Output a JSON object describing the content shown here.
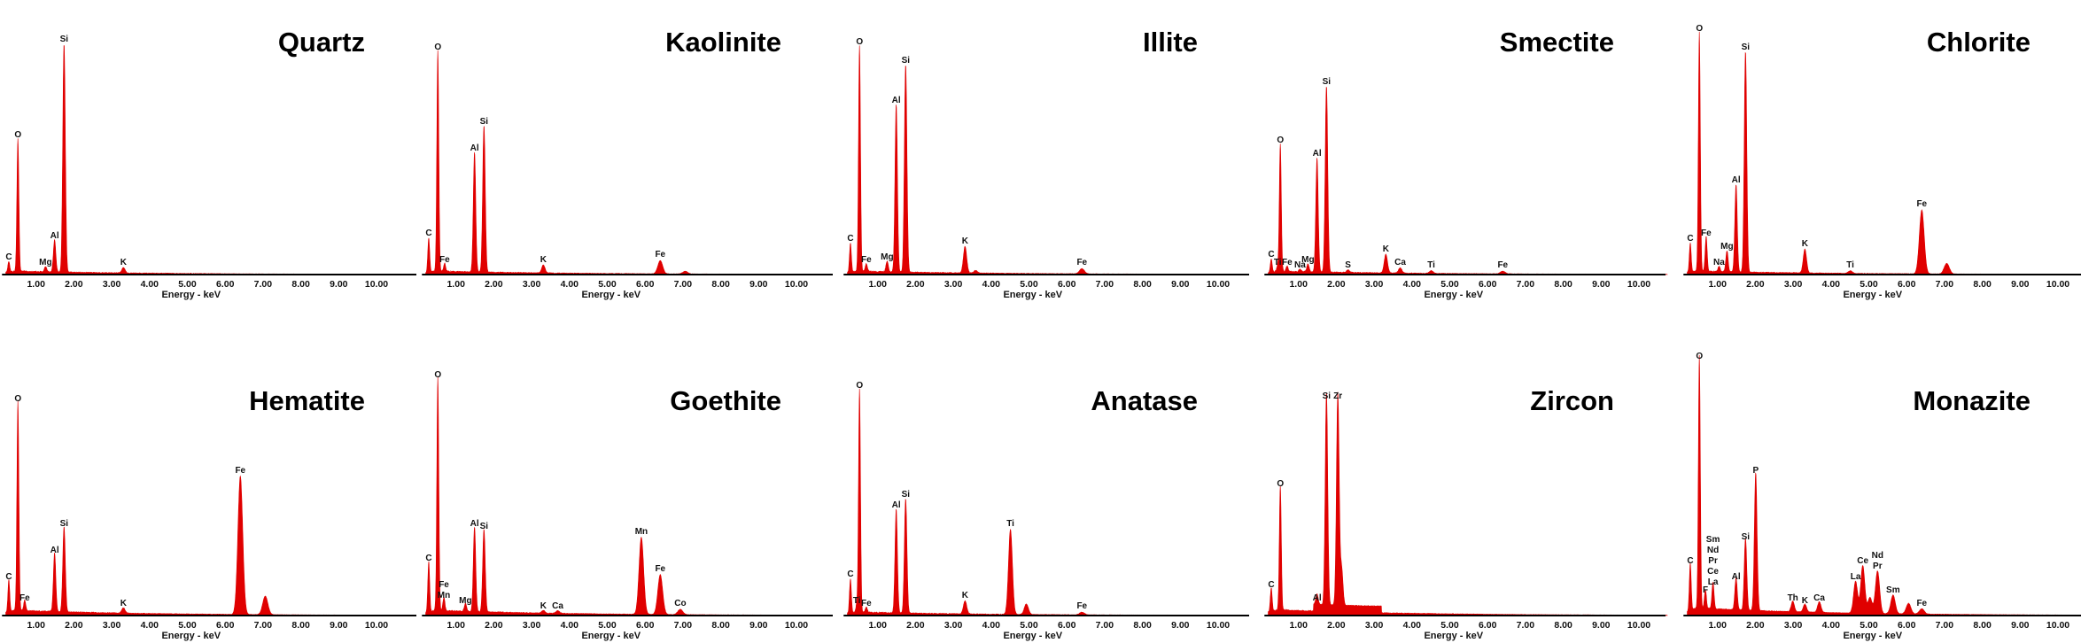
{
  "axis": {
    "xlabel": "Energy - keV",
    "ticks": [
      "1.00",
      "2.00",
      "3.00",
      "4.00",
      "5.00",
      "6.00",
      "7.00",
      "8.00",
      "9.00",
      "10.00"
    ],
    "tick_values": [
      1,
      2,
      3,
      4,
      5,
      6,
      7,
      8,
      9,
      10
    ],
    "xlim": [
      0,
      10.7
    ],
    "intensity_unit": "relative counts (% of full scale)"
  },
  "colors": {
    "spectrum": "#e00000",
    "axis": "#000000"
  },
  "chart_data": [
    {
      "type": "area",
      "title": "Quartz",
      "xlabel": "Energy - keV",
      "peaks": [
        {
          "energy": 0.28,
          "intensity": 4,
          "labels": [
            "C"
          ]
        },
        {
          "energy": 0.52,
          "intensity": 50,
          "labels": [
            "O"
          ]
        },
        {
          "energy": 1.25,
          "intensity": 2,
          "labels": [
            "Mg"
          ]
        },
        {
          "energy": 1.49,
          "intensity": 12,
          "labels": [
            "Al"
          ]
        },
        {
          "energy": 1.74,
          "intensity": 86,
          "labels": [
            "Si"
          ]
        },
        {
          "energy": 3.31,
          "intensity": 2,
          "labels": [
            "K"
          ]
        }
      ]
    },
    {
      "type": "area",
      "title": "Kaolinite",
      "xlabel": "Energy - keV",
      "peaks": [
        {
          "energy": 0.28,
          "intensity": 13,
          "labels": [
            "C"
          ]
        },
        {
          "energy": 0.52,
          "intensity": 83,
          "labels": [
            "O"
          ]
        },
        {
          "energy": 0.7,
          "intensity": 3,
          "labels": [
            "Fe"
          ]
        },
        {
          "energy": 1.49,
          "intensity": 45,
          "labels": [
            "Al"
          ]
        },
        {
          "energy": 1.74,
          "intensity": 55,
          "labels": [
            "Si"
          ]
        },
        {
          "energy": 3.31,
          "intensity": 3,
          "labels": [
            "K"
          ]
        },
        {
          "energy": 6.4,
          "intensity": 5,
          "labels": [
            "Fe"
          ]
        },
        {
          "energy": 7.06,
          "intensity": 1,
          "labels": []
        }
      ]
    },
    {
      "type": "area",
      "title": "Illite",
      "xlabel": "Energy - keV",
      "peaks": [
        {
          "energy": 0.28,
          "intensity": 11,
          "labels": [
            "C"
          ]
        },
        {
          "energy": 0.52,
          "intensity": 85,
          "labels": [
            "O"
          ]
        },
        {
          "energy": 0.7,
          "intensity": 3,
          "labels": [
            "Fe"
          ]
        },
        {
          "energy": 1.25,
          "intensity": 4,
          "labels": [
            "Mg"
          ]
        },
        {
          "energy": 1.49,
          "intensity": 63,
          "labels": [
            "Al"
          ]
        },
        {
          "energy": 1.74,
          "intensity": 78,
          "labels": [
            "Si"
          ]
        },
        {
          "energy": 3.31,
          "intensity": 10,
          "labels": [
            "K"
          ]
        },
        {
          "energy": 3.59,
          "intensity": 1,
          "labels": []
        },
        {
          "energy": 6.4,
          "intensity": 2,
          "labels": [
            "Fe"
          ]
        }
      ]
    },
    {
      "type": "area",
      "title": "Smectite",
      "xlabel": "Energy - keV",
      "peaks": [
        {
          "energy": 0.28,
          "intensity": 5,
          "labels": [
            "C"
          ]
        },
        {
          "energy": 0.45,
          "intensity": 2,
          "labels": [
            "Ti"
          ]
        },
        {
          "energy": 0.52,
          "intensity": 48,
          "labels": [
            "O"
          ]
        },
        {
          "energy": 0.7,
          "intensity": 2,
          "labels": [
            "Fe"
          ]
        },
        {
          "energy": 1.04,
          "intensity": 1,
          "labels": [
            "Na"
          ]
        },
        {
          "energy": 1.25,
          "intensity": 3,
          "labels": [
            "Mg"
          ]
        },
        {
          "energy": 1.49,
          "intensity": 43,
          "labels": [
            "Al"
          ]
        },
        {
          "energy": 1.74,
          "intensity": 70,
          "labels": [
            "Si"
          ]
        },
        {
          "energy": 2.31,
          "intensity": 1,
          "labels": [
            "S"
          ]
        },
        {
          "energy": 3.31,
          "intensity": 7,
          "labels": [
            "K"
          ]
        },
        {
          "energy": 3.69,
          "intensity": 2,
          "labels": [
            "Ca"
          ]
        },
        {
          "energy": 4.51,
          "intensity": 1,
          "labels": [
            "Ti"
          ]
        },
        {
          "energy": 6.4,
          "intensity": 1,
          "labels": [
            "Fe"
          ]
        }
      ]
    },
    {
      "type": "area",
      "title": "Chlorite",
      "xlabel": "Energy - keV",
      "peaks": [
        {
          "energy": 0.28,
          "intensity": 11,
          "labels": [
            "C"
          ]
        },
        {
          "energy": 0.52,
          "intensity": 90,
          "labels": [
            "O"
          ]
        },
        {
          "energy": 0.7,
          "intensity": 13,
          "labels": [
            "Fe"
          ]
        },
        {
          "energy": 1.04,
          "intensity": 2,
          "labels": [
            "Na"
          ]
        },
        {
          "energy": 1.25,
          "intensity": 8,
          "labels": [
            "Mg"
          ]
        },
        {
          "energy": 1.49,
          "intensity": 33,
          "labels": [
            "Al"
          ]
        },
        {
          "energy": 1.74,
          "intensity": 83,
          "labels": [
            "Si"
          ]
        },
        {
          "energy": 3.31,
          "intensity": 9,
          "labels": [
            "K"
          ]
        },
        {
          "energy": 4.51,
          "intensity": 1,
          "labels": [
            "Ti"
          ]
        },
        {
          "energy": 6.4,
          "intensity": 24,
          "labels": [
            "Fe"
          ]
        },
        {
          "energy": 7.06,
          "intensity": 4,
          "labels": []
        }
      ]
    },
    {
      "type": "area",
      "title": "Hematite",
      "xlabel": "Energy - keV",
      "peaks": [
        {
          "energy": 0.28,
          "intensity": 12,
          "labels": [
            "C"
          ]
        },
        {
          "energy": 0.52,
          "intensity": 79,
          "labels": [
            "O"
          ]
        },
        {
          "energy": 0.7,
          "intensity": 4,
          "labels": [
            "Fe"
          ]
        },
        {
          "energy": 1.49,
          "intensity": 22,
          "labels": [
            "Al"
          ]
        },
        {
          "energy": 1.74,
          "intensity": 32,
          "labels": [
            "Si"
          ]
        },
        {
          "energy": 3.31,
          "intensity": 2,
          "labels": [
            "K"
          ]
        },
        {
          "energy": 6.4,
          "intensity": 52,
          "labels": [
            "Fe"
          ]
        },
        {
          "energy": 7.06,
          "intensity": 7,
          "labels": []
        }
      ]
    },
    {
      "type": "area",
      "title": "Goethite",
      "xlabel": "Energy - keV",
      "peaks": [
        {
          "energy": 0.28,
          "intensity": 19,
          "labels": [
            "C"
          ]
        },
        {
          "energy": 0.52,
          "intensity": 88,
          "labels": [
            "O"
          ]
        },
        {
          "energy": 0.68,
          "intensity": 5,
          "labels": [
            "Mn",
            "Fe"
          ]
        },
        {
          "energy": 1.25,
          "intensity": 3,
          "labels": [
            "Mg"
          ]
        },
        {
          "energy": 1.49,
          "intensity": 32,
          "labels": [
            "Al"
          ]
        },
        {
          "energy": 1.74,
          "intensity": 31,
          "labels": [
            "Si"
          ]
        },
        {
          "energy": 3.31,
          "intensity": 1,
          "labels": [
            "K"
          ]
        },
        {
          "energy": 3.69,
          "intensity": 1,
          "labels": [
            "Ca"
          ]
        },
        {
          "energy": 5.9,
          "intensity": 29,
          "labels": [
            "Mn"
          ]
        },
        {
          "energy": 6.4,
          "intensity": 15,
          "labels": [
            "Fe"
          ]
        },
        {
          "energy": 6.93,
          "intensity": 2,
          "labels": [
            "Co"
          ]
        }
      ]
    },
    {
      "type": "area",
      "title": "Anatase",
      "xlabel": "Energy - keV",
      "peaks": [
        {
          "energy": 0.28,
          "intensity": 13,
          "labels": [
            "C"
          ]
        },
        {
          "energy": 0.45,
          "intensity": 3,
          "labels": [
            "Ti"
          ]
        },
        {
          "energy": 0.52,
          "intensity": 84,
          "labels": [
            "O"
          ]
        },
        {
          "energy": 0.7,
          "intensity": 2,
          "labels": [
            "Fe"
          ]
        },
        {
          "energy": 1.49,
          "intensity": 39,
          "labels": [
            "Al"
          ]
        },
        {
          "energy": 1.74,
          "intensity": 43,
          "labels": [
            "Si"
          ]
        },
        {
          "energy": 3.31,
          "intensity": 5,
          "labels": [
            "K"
          ]
        },
        {
          "energy": 4.51,
          "intensity": 32,
          "labels": [
            "Ti"
          ]
        },
        {
          "energy": 4.93,
          "intensity": 4,
          "labels": []
        },
        {
          "energy": 6.4,
          "intensity": 1,
          "labels": [
            "Fe"
          ]
        }
      ]
    },
    {
      "type": "area",
      "title": "Zircon",
      "xlabel": "Energy - keV",
      "peaks": [
        {
          "energy": 0.28,
          "intensity": 9,
          "labels": [
            "C"
          ]
        },
        {
          "energy": 0.52,
          "intensity": 47,
          "labels": [
            "O"
          ]
        },
        {
          "energy": 1.49,
          "intensity": 4,
          "labels": [
            "Al"
          ]
        },
        {
          "energy": 1.74,
          "intensity": 80,
          "labels": [
            "Si"
          ]
        },
        {
          "energy": 2.04,
          "intensity": 80,
          "labels": [
            "Zr"
          ]
        },
        {
          "energy": 2.14,
          "intensity": 14,
          "labels": []
        }
      ]
    },
    {
      "type": "area",
      "title": "Monazite",
      "xlabel": "Energy - keV",
      "peaks": [
        {
          "energy": 0.28,
          "intensity": 18,
          "labels": [
            "C"
          ]
        },
        {
          "energy": 0.52,
          "intensity": 95,
          "labels": [
            "O"
          ]
        },
        {
          "energy": 0.68,
          "intensity": 7,
          "labels": [
            "F"
          ]
        },
        {
          "energy": 0.88,
          "intensity": 10,
          "labels": [
            "La",
            "Ce",
            "Pr",
            "Nd",
            "Sm"
          ]
        },
        {
          "energy": 1.49,
          "intensity": 12,
          "labels": [
            "Al"
          ]
        },
        {
          "energy": 1.74,
          "intensity": 27,
          "labels": [
            "Si"
          ]
        },
        {
          "energy": 2.01,
          "intensity": 52,
          "labels": [
            "P"
          ]
        },
        {
          "energy": 2.99,
          "intensity": 4,
          "labels": [
            "Th"
          ]
        },
        {
          "energy": 3.31,
          "intensity": 3,
          "labels": [
            "K"
          ]
        },
        {
          "energy": 3.69,
          "intensity": 4,
          "labels": [
            "Ca"
          ]
        },
        {
          "energy": 4.65,
          "intensity": 12,
          "labels": [
            "La"
          ]
        },
        {
          "energy": 4.84,
          "intensity": 18,
          "labels": [
            "Ce"
          ]
        },
        {
          "energy": 5.03,
          "intensity": 6,
          "labels": []
        },
        {
          "energy": 5.23,
          "intensity": 16,
          "labels": [
            "Pr",
            "Nd"
          ]
        },
        {
          "energy": 5.64,
          "intensity": 7,
          "labels": [
            "Sm"
          ]
        },
        {
          "energy": 6.05,
          "intensity": 4,
          "labels": []
        },
        {
          "energy": 6.4,
          "intensity": 2,
          "labels": [
            "Fe"
          ]
        }
      ]
    }
  ]
}
